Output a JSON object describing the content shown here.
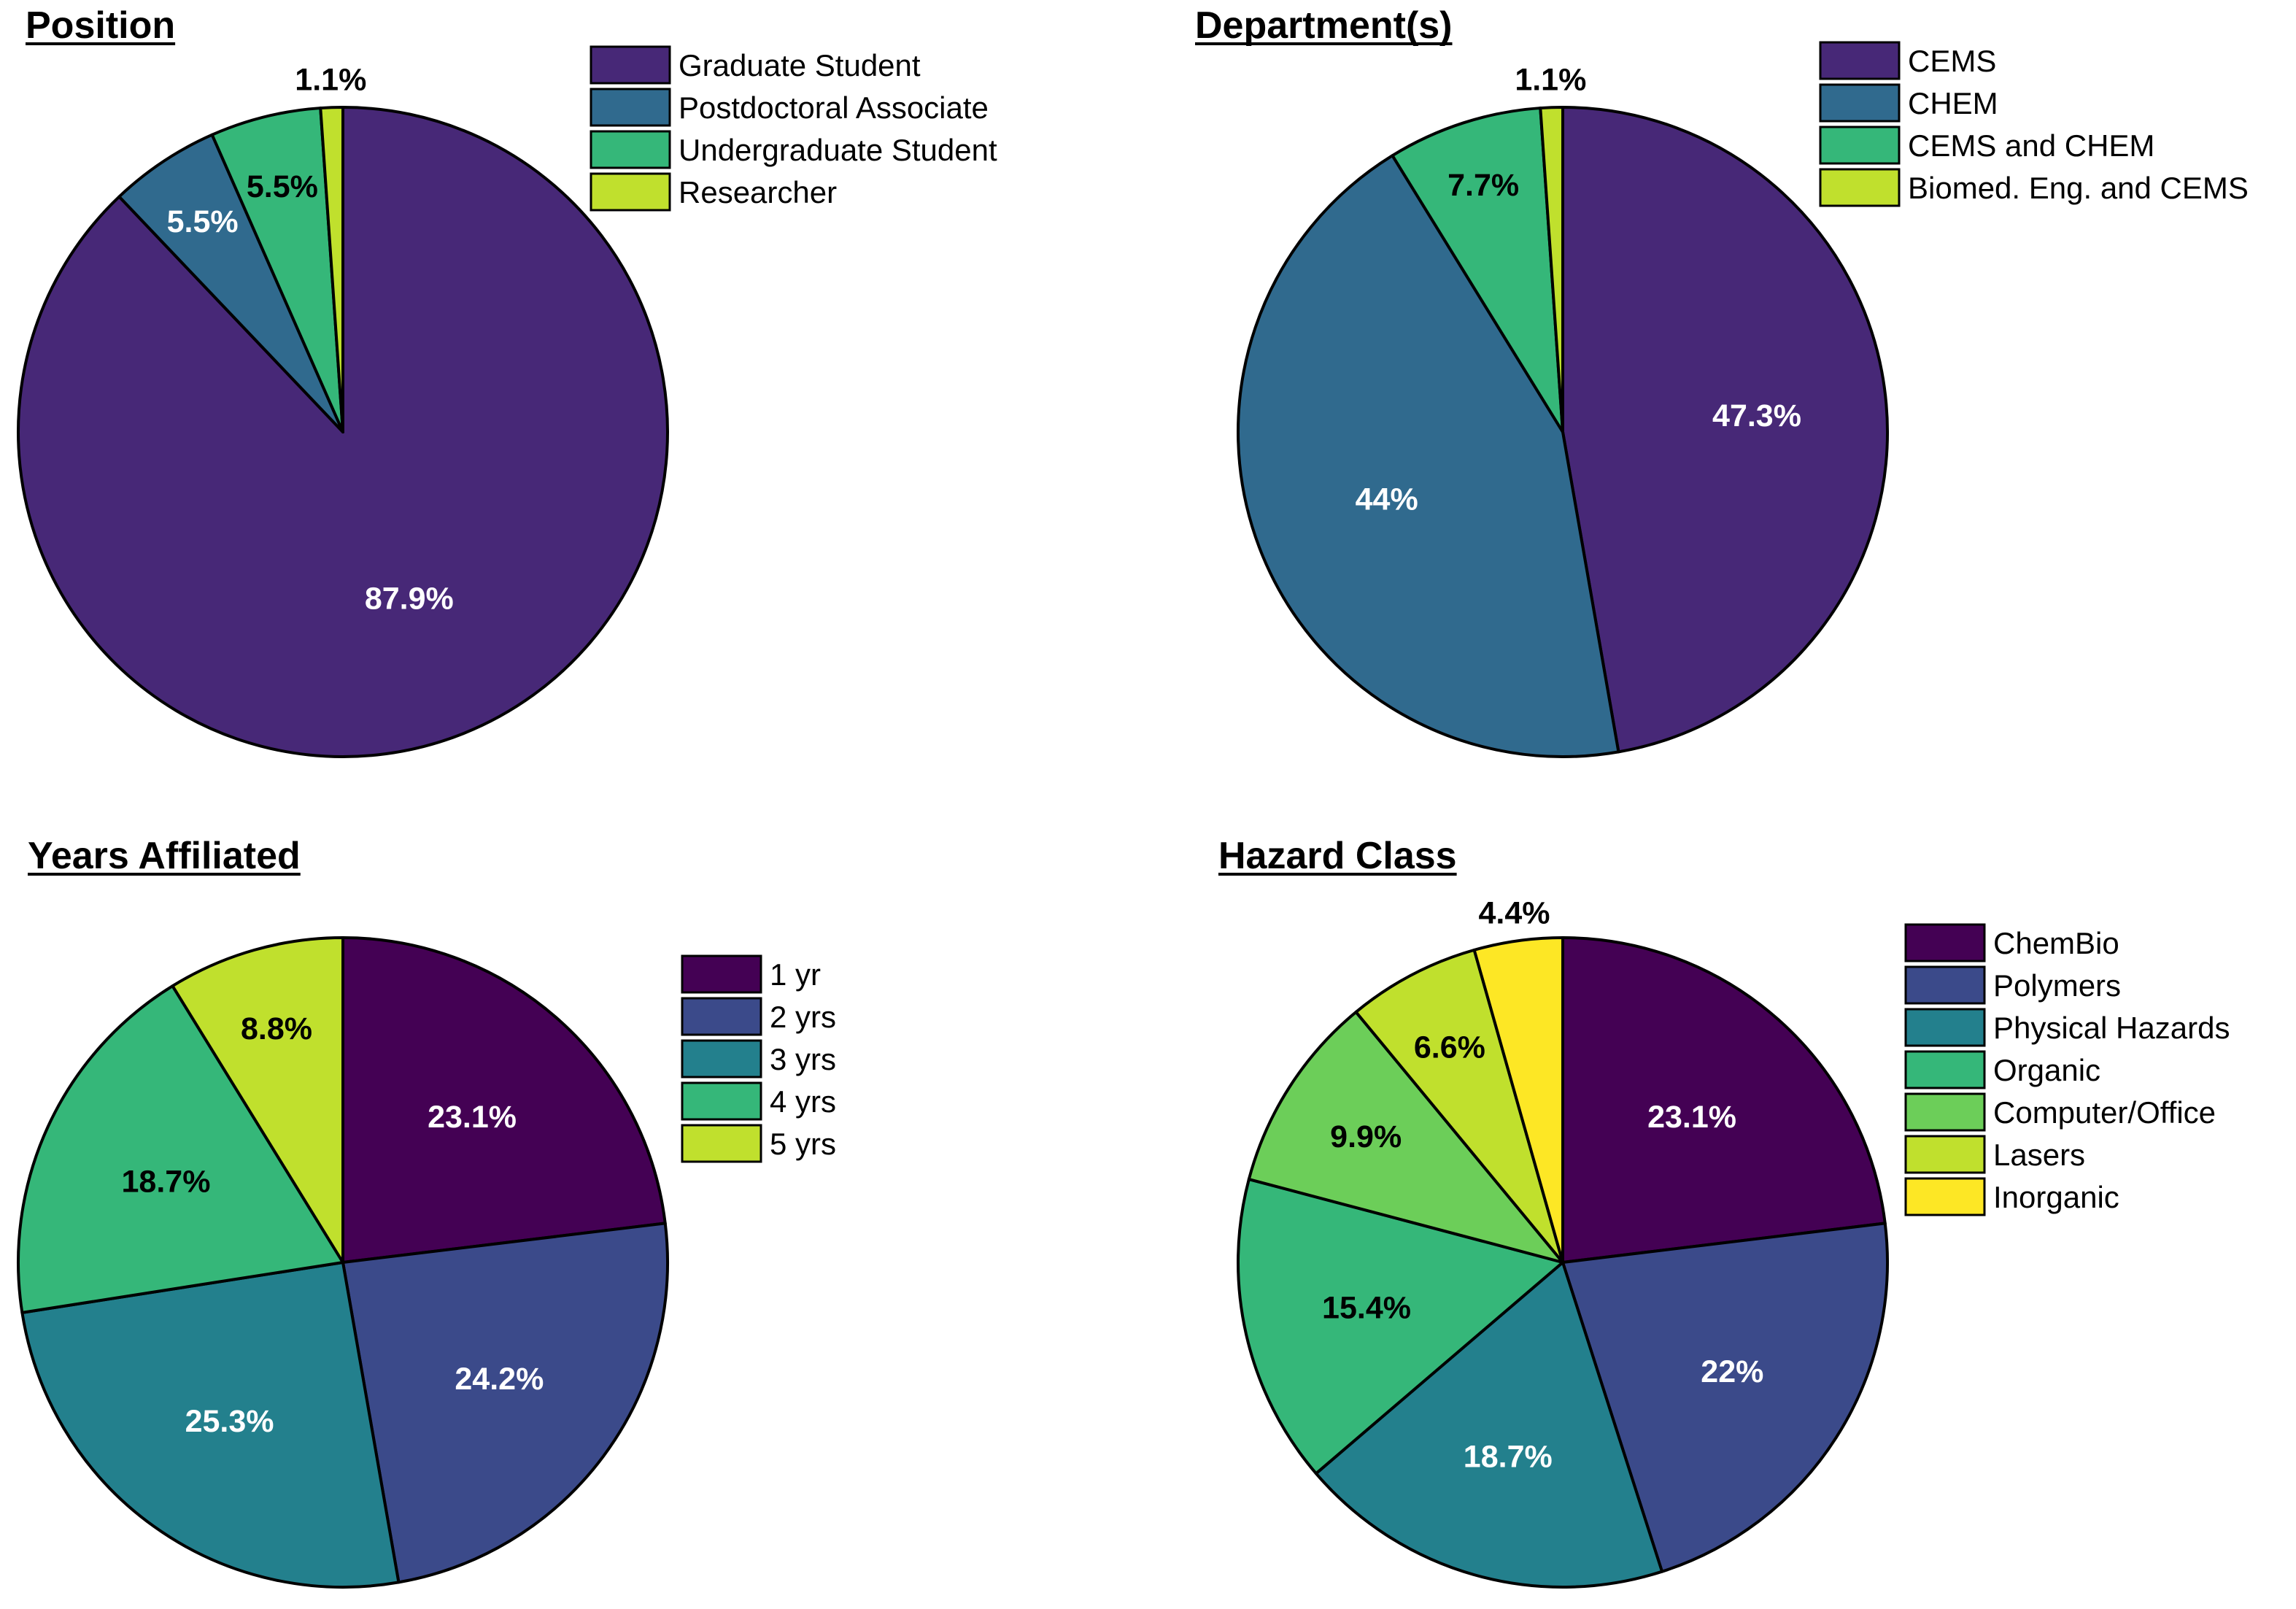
{
  "chart_data": [
    {
      "type": "pie",
      "title": "Position",
      "categories": [
        "Graduate Student",
        "Postdoctoral Associate",
        "Undergraduate Student",
        "Researcher"
      ],
      "values": [
        87.9,
        5.5,
        5.5,
        1.1
      ],
      "labels": [
        "87.9%",
        "5.5%",
        "5.5%",
        "1.1%"
      ],
      "colors": [
        "#472877",
        "#306a8e",
        "#35b779",
        "#c0e02d"
      ],
      "label_colors": [
        "#ffffff",
        "#ffffff",
        "#000000",
        "#000000"
      ],
      "legend_position": "top-right"
    },
    {
      "type": "pie",
      "title": "Department(s)",
      "categories": [
        "CEMS",
        "CHEM",
        "CEMS and CHEM",
        "Biomed. Eng. and CEMS"
      ],
      "values": [
        47.3,
        44,
        7.7,
        1.1
      ],
      "labels": [
        "47.3%",
        "44%",
        "7.7%",
        "1.1%"
      ],
      "colors": [
        "#472877",
        "#306a8e",
        "#35b779",
        "#c0e02d"
      ],
      "label_colors": [
        "#ffffff",
        "#ffffff",
        "#000000",
        "#000000"
      ],
      "legend_position": "top-right"
    },
    {
      "type": "pie",
      "title": "Years Affiliated",
      "categories": [
        "1 yr",
        "2 yrs",
        "3 yrs",
        "4 yrs",
        "5 yrs"
      ],
      "values": [
        23.1,
        24.2,
        25.3,
        18.7,
        8.8
      ],
      "labels": [
        "23.1%",
        "24.2%",
        "25.3%",
        "18.7%",
        "8.8%"
      ],
      "colors": [
        "#440154",
        "#3b4a8a",
        "#23808d",
        "#35b779",
        "#c0e02d"
      ],
      "label_colors": [
        "#ffffff",
        "#ffffff",
        "#ffffff",
        "#000000",
        "#000000"
      ],
      "legend_position": "top-right"
    },
    {
      "type": "pie",
      "title": "Hazard Class",
      "categories": [
        "ChemBio",
        "Polymers",
        "Physical Hazards",
        "Organic",
        "Computer/Office",
        "Lasers",
        "Inorganic"
      ],
      "values": [
        23.1,
        22,
        18.7,
        15.4,
        9.9,
        6.6,
        4.4
      ],
      "labels": [
        "23.1%",
        "22%",
        "18.7%",
        "15.4%",
        "9.9%",
        "6.6%",
        "4.4%"
      ],
      "colors": [
        "#440154",
        "#3b4a8a",
        "#23808d",
        "#35b779",
        "#6cce59",
        "#c0e02d",
        "#fde725"
      ],
      "label_colors": [
        "#ffffff",
        "#ffffff",
        "#ffffff",
        "#000000",
        "#000000",
        "#000000",
        "#000000"
      ],
      "legend_position": "top-right"
    }
  ]
}
